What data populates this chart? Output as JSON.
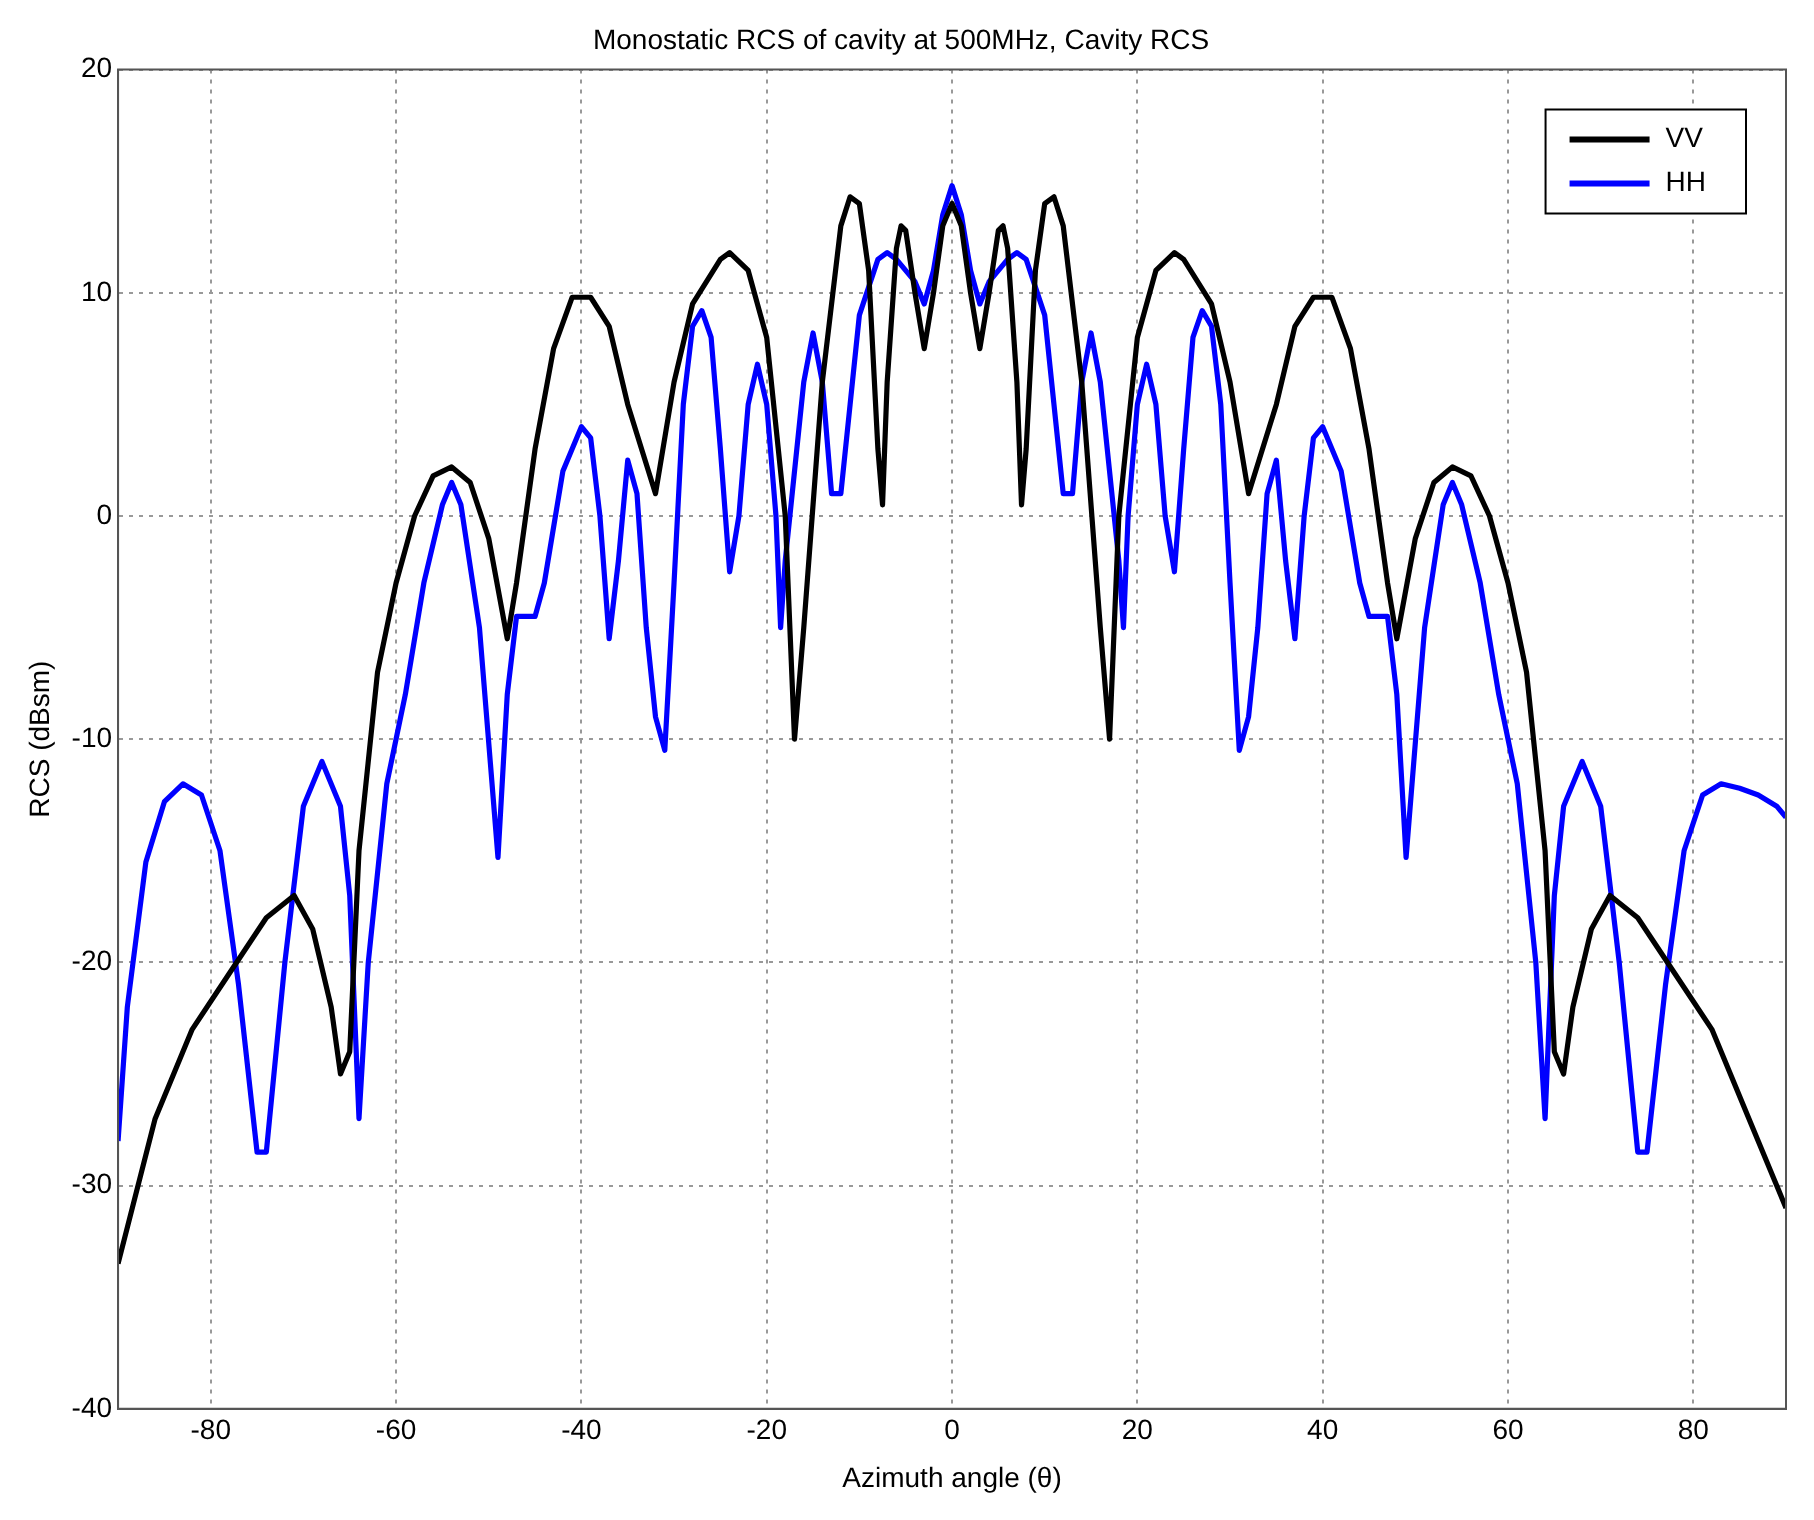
{
  "chart_data": {
    "type": "line",
    "title": "Monostatic RCS of cavity at 500MHz, Cavity RCS",
    "xlabel": "Azimuth angle (θ)",
    "ylabel": "RCS (dBsm)",
    "xlim": [
      -90,
      90
    ],
    "xticks": [
      -80,
      -60,
      -40,
      -20,
      0,
      20,
      40,
      60,
      80
    ],
    "ylim": [
      -40,
      20
    ],
    "yticks": [
      -40,
      -30,
      -20,
      -10,
      0,
      10,
      20
    ],
    "grid": true,
    "legend": "top right",
    "marker": "none",
    "line_style": "solid",
    "series": [
      {
        "name": "VV",
        "color": "#000000",
        "x": [
          -90,
          -86,
          -82,
          -78,
          -74,
          -71,
          -69,
          -67,
          -66,
          -65,
          -64,
          -62,
          -60,
          -58,
          -56,
          -54,
          -52,
          -50,
          -48,
          -47,
          -45,
          -43,
          -41,
          -39,
          -37,
          -35,
          -32,
          -30,
          -28,
          -25,
          -24,
          -22,
          -20,
          -18,
          -17,
          -16,
          -14,
          -12,
          -11,
          -10,
          -9,
          -8,
          -7.5,
          -7,
          -6,
          -5.5,
          -5,
          -4,
          -3,
          -2,
          -1,
          0,
          1,
          2,
          3,
          4,
          5,
          5.5,
          6,
          7,
          7.5,
          8,
          9,
          10,
          11,
          12,
          14,
          16,
          17,
          18,
          20,
          22,
          24,
          25,
          28,
          30,
          32,
          35,
          37,
          39,
          41,
          43,
          45,
          47,
          48,
          50,
          52,
          54,
          56,
          58,
          60,
          62,
          64,
          65,
          66,
          67,
          69,
          71,
          74,
          78,
          82,
          86,
          90
        ],
        "values": [
          -33.5,
          -27,
          -23,
          -20.5,
          -18,
          -17,
          -18.5,
          -22,
          -25,
          -24,
          -15,
          -7,
          -3,
          0,
          1.8,
          2.2,
          1.5,
          -1,
          -5.5,
          -3,
          3,
          7.5,
          9.8,
          9.8,
          8.5,
          5,
          1,
          6,
          9.5,
          11.5,
          11.8,
          11,
          8,
          0,
          -10,
          -5,
          6,
          13,
          14.3,
          14,
          11,
          3,
          0.5,
          6,
          12,
          13,
          12.8,
          10,
          7.5,
          10,
          13,
          14,
          13,
          10,
          7.5,
          10,
          12.8,
          13,
          12,
          6,
          0.5,
          3,
          11,
          14,
          14.3,
          13,
          6,
          -5,
          -10,
          0,
          8,
          11,
          11.8,
          11.5,
          9.5,
          6,
          1,
          5,
          8.5,
          9.8,
          9.8,
          7.5,
          3,
          -3,
          -5.5,
          -1,
          1.5,
          2.2,
          1.8,
          0,
          -3,
          -7,
          -15,
          -24,
          -25,
          -22,
          -18.5,
          -17,
          -18,
          -20.5,
          -23,
          -27,
          -31
        ]
      },
      {
        "name": "HH",
        "color": "#0000ff",
        "x": [
          -90,
          -89,
          -87,
          -85,
          -83,
          -81,
          -79,
          -77,
          -75,
          -74,
          -72,
          -70,
          -68,
          -66,
          -65,
          -64,
          -63,
          -61,
          -59,
          -57,
          -55,
          -54,
          -53,
          -51,
          -49,
          -48,
          -47,
          -46,
          -45,
          -44,
          -42,
          -40,
          -39,
          -38,
          -37,
          -36,
          -35,
          -34,
          -33,
          -32,
          -31,
          -30,
          -29,
          -28,
          -27,
          -26,
          -25,
          -24,
          -23,
          -22,
          -21,
          -20,
          -19,
          -18.5,
          -18,
          -16,
          -15,
          -14,
          -13,
          -12,
          -11,
          -10,
          -8,
          -7,
          -6,
          -4,
          -3,
          -2,
          -1,
          0,
          1,
          2,
          3,
          4,
          6,
          7,
          8,
          10,
          11,
          12,
          13,
          14,
          15,
          16,
          18,
          18.5,
          19,
          20,
          21,
          22,
          23,
          24,
          25,
          26,
          27,
          28,
          29,
          30,
          31,
          32,
          33,
          34,
          35,
          36,
          37,
          38,
          39,
          40,
          42,
          44,
          45,
          46,
          47,
          48,
          49,
          51,
          53,
          54,
          55,
          57,
          59,
          61,
          63,
          64,
          65,
          66,
          68,
          70,
          72,
          74,
          75,
          77,
          79,
          81,
          83,
          85,
          87,
          89,
          90
        ],
        "values": [
          -28,
          -22,
          -15.5,
          -12.8,
          -12,
          -12.5,
          -15,
          -21,
          -28.5,
          -28.5,
          -20,
          -13,
          -11,
          -13,
          -17,
          -27,
          -20,
          -12,
          -8,
          -3,
          0.5,
          1.5,
          0.5,
          -5,
          -15.3,
          -8,
          -4.5,
          -4.5,
          -4.5,
          -3,
          2,
          4,
          3.5,
          0,
          -5.5,
          -2,
          2.5,
          1,
          -5,
          -9,
          -10.5,
          -3,
          5,
          8.5,
          9.2,
          8,
          3,
          -2.5,
          0,
          5,
          6.8,
          5,
          0,
          -5,
          -2,
          6,
          8.2,
          6,
          1,
          1,
          5,
          9,
          11.5,
          11.8,
          11.5,
          10.5,
          9.5,
          11,
          13.5,
          14.8,
          13.5,
          11,
          9.5,
          10.5,
          11.5,
          11.8,
          11.5,
          9,
          5,
          1,
          1,
          6,
          8.2,
          6,
          -2,
          -5,
          0,
          5,
          6.8,
          5,
          0,
          -2.5,
          3,
          8,
          9.2,
          8.5,
          5,
          -3,
          -10.5,
          -9,
          -5,
          1,
          2.5,
          -2,
          -5.5,
          0,
          3.5,
          4,
          2,
          -3,
          -4.5,
          -4.5,
          -4.5,
          -8,
          -15.3,
          -5,
          0.5,
          1.5,
          0.5,
          -3,
          -8,
          -12,
          -20,
          -27,
          -17,
          -13,
          -11,
          -13,
          -20,
          -28.5,
          -28.5,
          -21,
          -15,
          -12.5,
          -12,
          -12.2,
          -12.5,
          -13,
          -13.5
        ]
      }
    ]
  }
}
